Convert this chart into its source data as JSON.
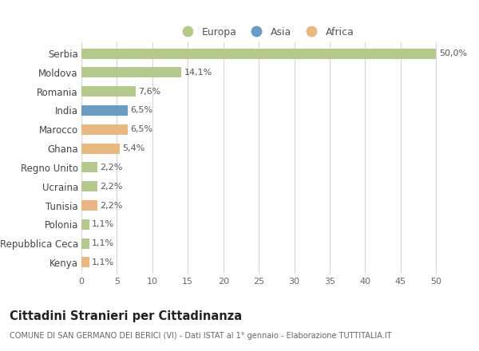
{
  "countries": [
    "Serbia",
    "Moldova",
    "Romania",
    "India",
    "Marocco",
    "Ghana",
    "Regno Unito",
    "Ucraina",
    "Tunisia",
    "Polonia",
    "Repubblica Ceca",
    "Kenya"
  ],
  "values": [
    50.0,
    14.1,
    7.6,
    6.5,
    6.5,
    5.4,
    2.2,
    2.2,
    2.2,
    1.1,
    1.1,
    1.1
  ],
  "labels": [
    "50,0%",
    "14,1%",
    "7,6%",
    "6,5%",
    "6,5%",
    "5,4%",
    "2,2%",
    "2,2%",
    "2,2%",
    "1,1%",
    "1,1%",
    "1,1%"
  ],
  "continents": [
    "Europa",
    "Europa",
    "Europa",
    "Asia",
    "Africa",
    "Africa",
    "Europa",
    "Europa",
    "Africa",
    "Europa",
    "Europa",
    "Africa"
  ],
  "colors": {
    "Europa": "#b5c98e",
    "Asia": "#6a9bc4",
    "Africa": "#e8b882"
  },
  "title": "Cittadini Stranieri per Cittadinanza",
  "subtitle": "COMUNE DI SAN GERMANO DEI BERICI (VI) - Dati ISTAT al 1° gennaio - Elaborazione TUTTITALIA.IT",
  "xlabel_ticks": [
    0,
    5,
    10,
    15,
    20,
    25,
    30,
    35,
    40,
    45,
    50
  ],
  "background_color": "#ffffff",
  "grid_color": "#d5d5d5",
  "bar_height": 0.55
}
